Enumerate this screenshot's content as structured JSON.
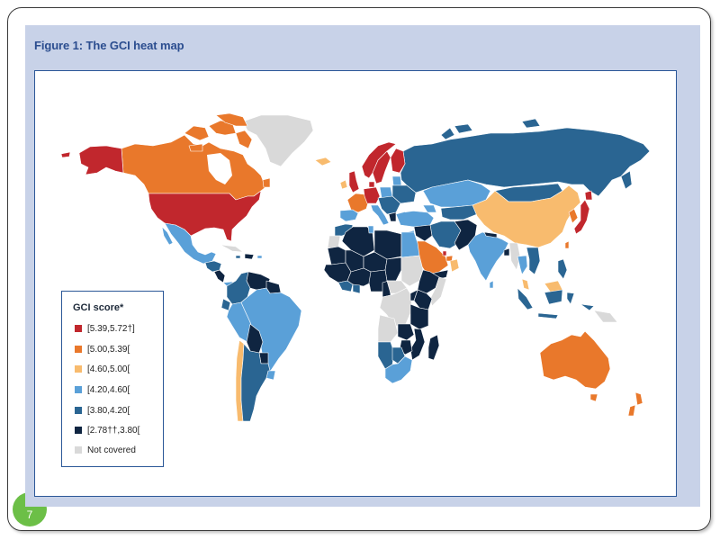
{
  "figure": {
    "title": "Figure 1: The GCI heat map"
  },
  "legend": {
    "title": "GCI score*",
    "items": [
      {
        "label": "[5.39,5.72†]",
        "color": "#c1272d"
      },
      {
        "label": "[5.00,5.39[",
        "color": "#e9782b"
      },
      {
        "label": "[4.60,5.00[",
        "color": "#f8bb6e"
      },
      {
        "label": "[4.20,4.60[",
        "color": "#5aa0d8"
      },
      {
        "label": "[3.80,4.20[",
        "color": "#2a6592"
      },
      {
        "label": "[2.78††,3.80[",
        "color": "#0f2541"
      },
      {
        "label": "Not covered",
        "color": "#d9d9d9"
      }
    ]
  },
  "slide": {
    "page_number": "7",
    "badge_color": "#6cbf47"
  },
  "colors": {
    "title": "#2b4d8f",
    "panel": "#c8d2e8"
  }
}
